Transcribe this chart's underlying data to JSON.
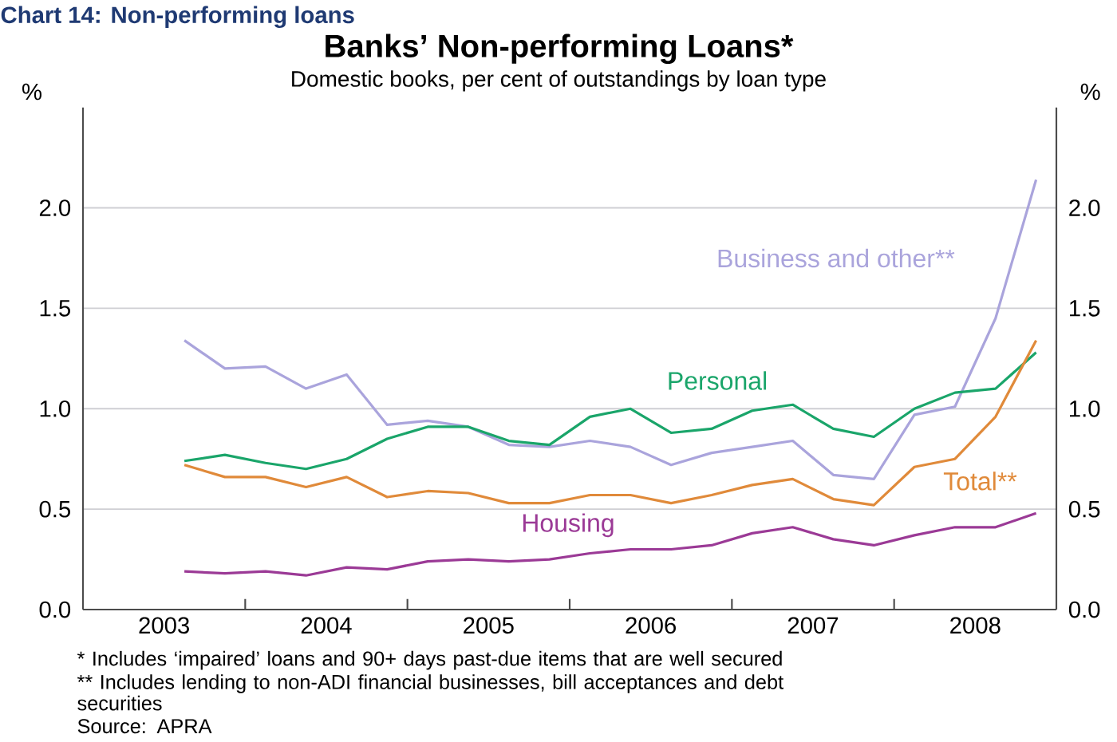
{
  "chart_data": {
    "type": "line",
    "title": "Banks’ Non-performing Loans*",
    "subtitle": "Domestic books, per cent of outstandings by loan type",
    "x": [
      2003.625,
      2003.875,
      2004.125,
      2004.375,
      2004.625,
      2004.875,
      2005.125,
      2005.375,
      2005.625,
      2005.875,
      2006.125,
      2006.375,
      2006.625,
      2006.875,
      2007.125,
      2007.375,
      2007.625,
      2007.875,
      2008.125,
      2008.375,
      2008.625,
      2008.875
    ],
    "series": [
      {
        "name": "Business and other**",
        "color": "#aaa4dc",
        "values": [
          1.34,
          1.2,
          1.21,
          1.1,
          1.17,
          0.92,
          0.94,
          0.91,
          0.82,
          0.81,
          0.84,
          0.81,
          0.72,
          0.78,
          0.81,
          0.84,
          0.67,
          0.65,
          0.97,
          1.01,
          1.45,
          2.14
        ]
      },
      {
        "name": "Personal",
        "color": "#1aa56a",
        "values": [
          0.74,
          0.77,
          0.73,
          0.7,
          0.75,
          0.85,
          0.91,
          0.91,
          0.84,
          0.82,
          0.96,
          1.0,
          0.88,
          0.9,
          0.99,
          1.02,
          0.9,
          0.86,
          1.0,
          1.08,
          1.1,
          1.28
        ]
      },
      {
        "name": "Total**",
        "color": "#e08a3a",
        "values": [
          0.72,
          0.66,
          0.66,
          0.61,
          0.66,
          0.56,
          0.59,
          0.58,
          0.53,
          0.53,
          0.57,
          0.57,
          0.53,
          0.57,
          0.62,
          0.65,
          0.55,
          0.52,
          0.71,
          0.75,
          0.96,
          1.34
        ]
      },
      {
        "name": "Housing",
        "color": "#9b3a96",
        "values": [
          0.19,
          0.18,
          0.19,
          0.17,
          0.21,
          0.2,
          0.24,
          0.25,
          0.24,
          0.25,
          0.28,
          0.3,
          0.3,
          0.32,
          0.38,
          0.41,
          0.35,
          0.32,
          0.37,
          0.41,
          0.41,
          0.48
        ]
      }
    ],
    "xlim": [
      2003,
      2009
    ],
    "xticks": [
      {
        "value": 2003.5,
        "label": "2003"
      },
      {
        "value": 2004.5,
        "label": "2004"
      },
      {
        "value": 2005.5,
        "label": "2005"
      },
      {
        "value": 2006.5,
        "label": "2006"
      },
      {
        "value": 2007.5,
        "label": "2007"
      },
      {
        "value": 2008.5,
        "label": "2008"
      },
      {
        "value": 2004,
        "label": null
      },
      {
        "value": 2005,
        "label": null
      },
      {
        "value": 2006,
        "label": null
      },
      {
        "value": 2007,
        "label": null
      },
      {
        "value": 2008,
        "label": null
      }
    ],
    "ylim": [
      0,
      2.5
    ],
    "yticks": [
      {
        "value": 0,
        "label": "0.0"
      },
      {
        "value": 0.5,
        "label": "0.5"
      },
      {
        "value": 1,
        "label": "1.0"
      },
      {
        "value": 1.5,
        "label": "1.5"
      },
      {
        "value": 2,
        "label": "2.0"
      }
    ],
    "y2lim": [
      0,
      2.5
    ],
    "y2ticks": [
      {
        "value": 0,
        "label": "0.0"
      },
      {
        "value": 0.5,
        "label": "0.5"
      },
      {
        "value": 1,
        "label": "1.0"
      },
      {
        "value": 1.5,
        "label": "1.5"
      },
      {
        "value": 2,
        "label": "2.0"
      }
    ],
    "ylabel": "%",
    "y2label": "%",
    "grid": "y",
    "legend": false,
    "marker": "none",
    "line_style": "solid",
    "annotations": [
      "Chart 14: Non-performing loans",
      "*  Includes ‘impaired’ loans and 90+ days past-due items that are well secured",
      "**  Includes lending to non-ADI financial businesses, bill acceptances and debt securities",
      "Source: APRA"
    ]
  }
}
